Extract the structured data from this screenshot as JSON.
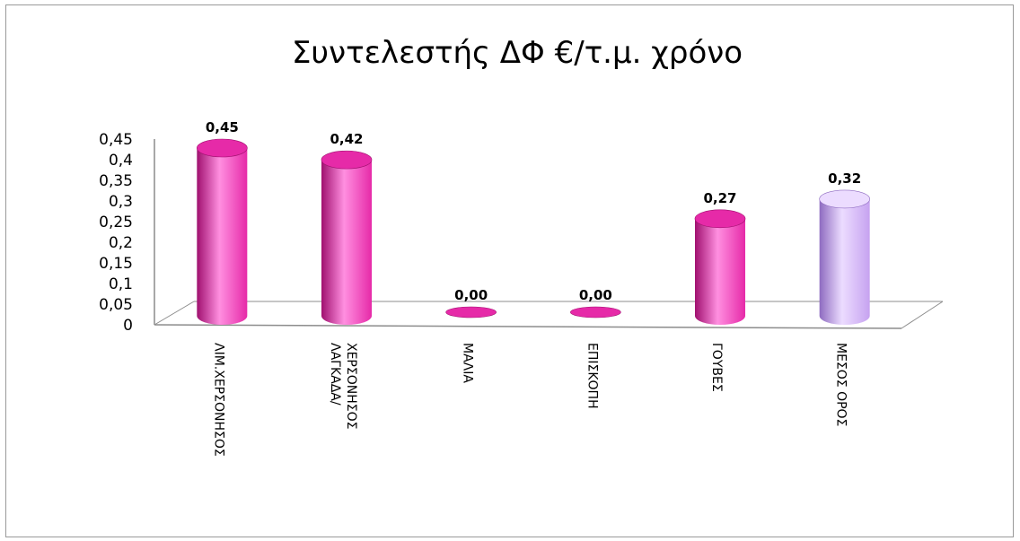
{
  "chart_data": {
    "type": "bar",
    "title": "Συντελεστής ΔΦ €/τ.μ. χρόνο",
    "xlabel": "",
    "ylabel": "",
    "ylim": [
      0,
      0.45
    ],
    "y_ticks": [
      "0",
      "0,05",
      "0,1",
      "0,15",
      "0,2",
      "0,25",
      "0,3",
      "0,35",
      "0,4",
      "0,45"
    ],
    "categories": [
      [
        "ΛΙΜ.ΧΕΡΣΟΝΗΣΟΣ"
      ],
      [
        "ΛΑΓΚΑΔΑ/",
        "ΧΕΡΣΟΝΗΣΟΣ"
      ],
      [
        "ΜΑΛΙΑ"
      ],
      [
        "ΕΠΙΣΚΟΠΗ"
      ],
      [
        "ΓΟΥΒΕΣ"
      ],
      [
        "ΜΕΣΟΣ ΟΡΟΣ"
      ]
    ],
    "values": [
      0.45,
      0.42,
      0.0,
      0.0,
      0.27,
      0.32
    ],
    "value_labels": [
      "0,45",
      "0,42",
      "0,00",
      "0,00",
      "0,27",
      "0,32"
    ],
    "bar_style": "3d-cylinder",
    "grid": false,
    "legend": "none",
    "colors": {
      "default_bar": "#e62aa8",
      "default_bar_light": "#ff8fe0",
      "default_bar_dark": "#a0106f",
      "highlight_bar": "#c6a2f0",
      "highlight_bar_light": "#ecdcff",
      "highlight_bar_dark": "#8e6bc0",
      "highlight_index": 5
    }
  }
}
